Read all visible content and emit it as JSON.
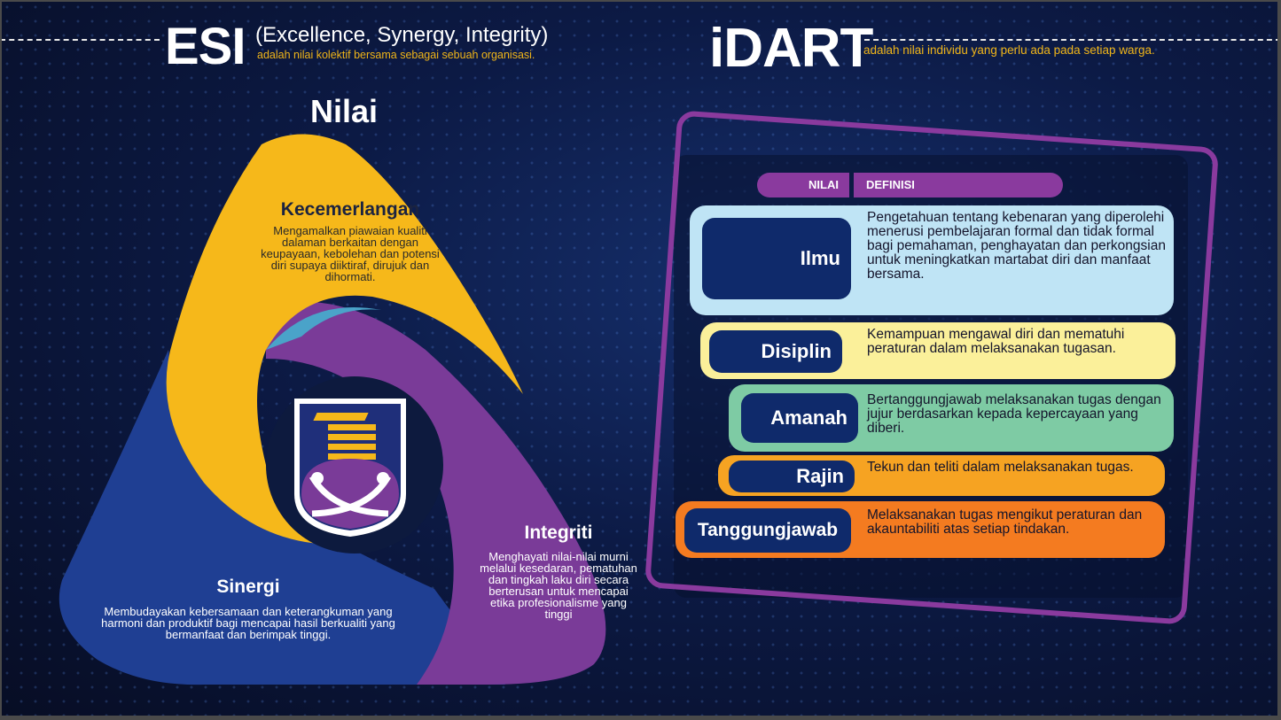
{
  "esi": {
    "title": "ESI",
    "subtitle": "(Excellence, Synergy, Integrity)",
    "description": "adalah nilai kolektif bersama sebagai sebuah organisasi."
  },
  "idart": {
    "title": "iDART",
    "description": "adalah nilai individu yang perlu ada pada setiap warga."
  },
  "nilai_title": "Nilai",
  "triangle": {
    "kecemerlangan": {
      "title": "Kecemerlangan",
      "text": "Mengamalkan piawaian kualiti dalaman berkaitan dengan keupayaan, kebolehan dan potensi diri supaya diiktiraf, dirujuk dan dihormati."
    },
    "sinergi": {
      "title": "Sinergi",
      "text": "Membudayakan kebersamaan dan keterangkuman yang harmoni dan produktif bagi mencapai hasil berkualiti yang bermanfaat dan berimpak tinggi."
    },
    "integriti": {
      "title": "Integriti",
      "text": "Menghayati nilai-nilai murni melalui kesedaran, pematuhan dan tingkah laku diri secara berterusan untuk mencapai etika profesionalisme yang tinggi"
    },
    "colors": {
      "yellow": "#f6b81a",
      "blue": "#1f3f93",
      "purple": "#7a3b98",
      "navy": "#0d1a3e"
    }
  },
  "table": {
    "header_nilai": "NILAI",
    "header_definisi": "DEFINISI",
    "rows": [
      {
        "name": "Ilmu",
        "definition": "Pengetahuan tentang kebenaran yang diperolehi menerusi pembelajaran formal dan tidak formal bagi pemahaman, penghayatan dan perkongsian untuk meningkatkan martabat diri dan manfaat bersama.",
        "color": "#bfe4f5"
      },
      {
        "name": "Disiplin",
        "definition": "Kemampuan mengawal diri dan mematuhi peraturan dalam melaksanakan tugasan.",
        "color": "#fbf09a"
      },
      {
        "name": "Amanah",
        "definition": "Bertanggungjawab melaksanakan tugas dengan jujur berdasarkan kepada kepercayaan yang diberi.",
        "color": "#7ecba4"
      },
      {
        "name": "Rajin",
        "definition": "Tekun dan teliti dalam melaksanakan tugas.",
        "color": "#f6a322"
      },
      {
        "name": "Tanggungjawab",
        "definition": "Melaksanakan tugas mengikut peraturan dan akauntabiliti atas setiap tindakan.",
        "color": "#f47b20"
      }
    ]
  }
}
